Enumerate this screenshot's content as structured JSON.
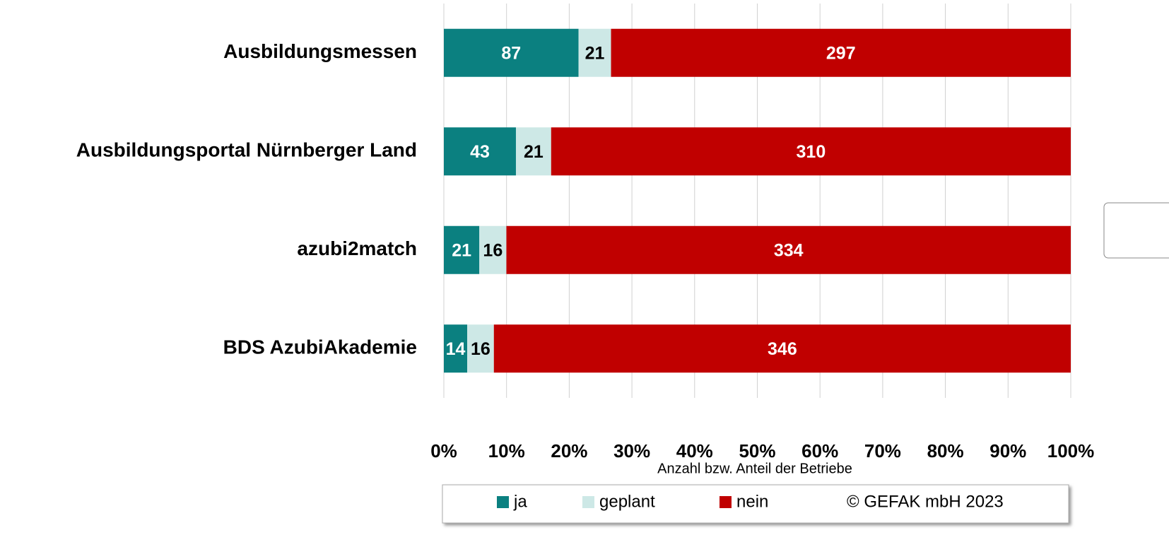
{
  "chart_data": {
    "type": "bar",
    "orientation": "horizontal",
    "stacked": "percent",
    "categories": [
      "Ausbildungsmessen",
      "Ausbildungsportal Nürnberger Land",
      "azubi2match",
      "BDS AzubiAkademie"
    ],
    "series": [
      {
        "name": "ja",
        "color": "#0b8080",
        "label_color": "#ffffff",
        "values": [
          87,
          43,
          21,
          14
        ]
      },
      {
        "name": "geplant",
        "color": "#cde8e6",
        "label_color": "#000000",
        "values": [
          21,
          21,
          16,
          16
        ]
      },
      {
        "name": "nein",
        "color": "#c00000",
        "label_color": "#ffffff",
        "values": [
          297,
          310,
          334,
          346
        ]
      }
    ],
    "xlabel": "Anzahl bzw. Anteil der Betriebe",
    "xlim": [
      0,
      100
    ],
    "xticks": [
      {
        "value": 0,
        "label": "0%"
      },
      {
        "value": 10,
        "label": "10%"
      },
      {
        "value": 20,
        "label": "20%"
      },
      {
        "value": 30,
        "label": "30%"
      },
      {
        "value": 40,
        "label": "40%"
      },
      {
        "value": 50,
        "label": "50%"
      },
      {
        "value": 60,
        "label": "60%"
      },
      {
        "value": 70,
        "label": "70%"
      },
      {
        "value": 80,
        "label": "80%"
      },
      {
        "value": 90,
        "label": "90%"
      },
      {
        "value": 100,
        "label": "100%"
      }
    ],
    "grid": true,
    "legend": "bottom",
    "source": "© GEFAK mbH 2023"
  }
}
